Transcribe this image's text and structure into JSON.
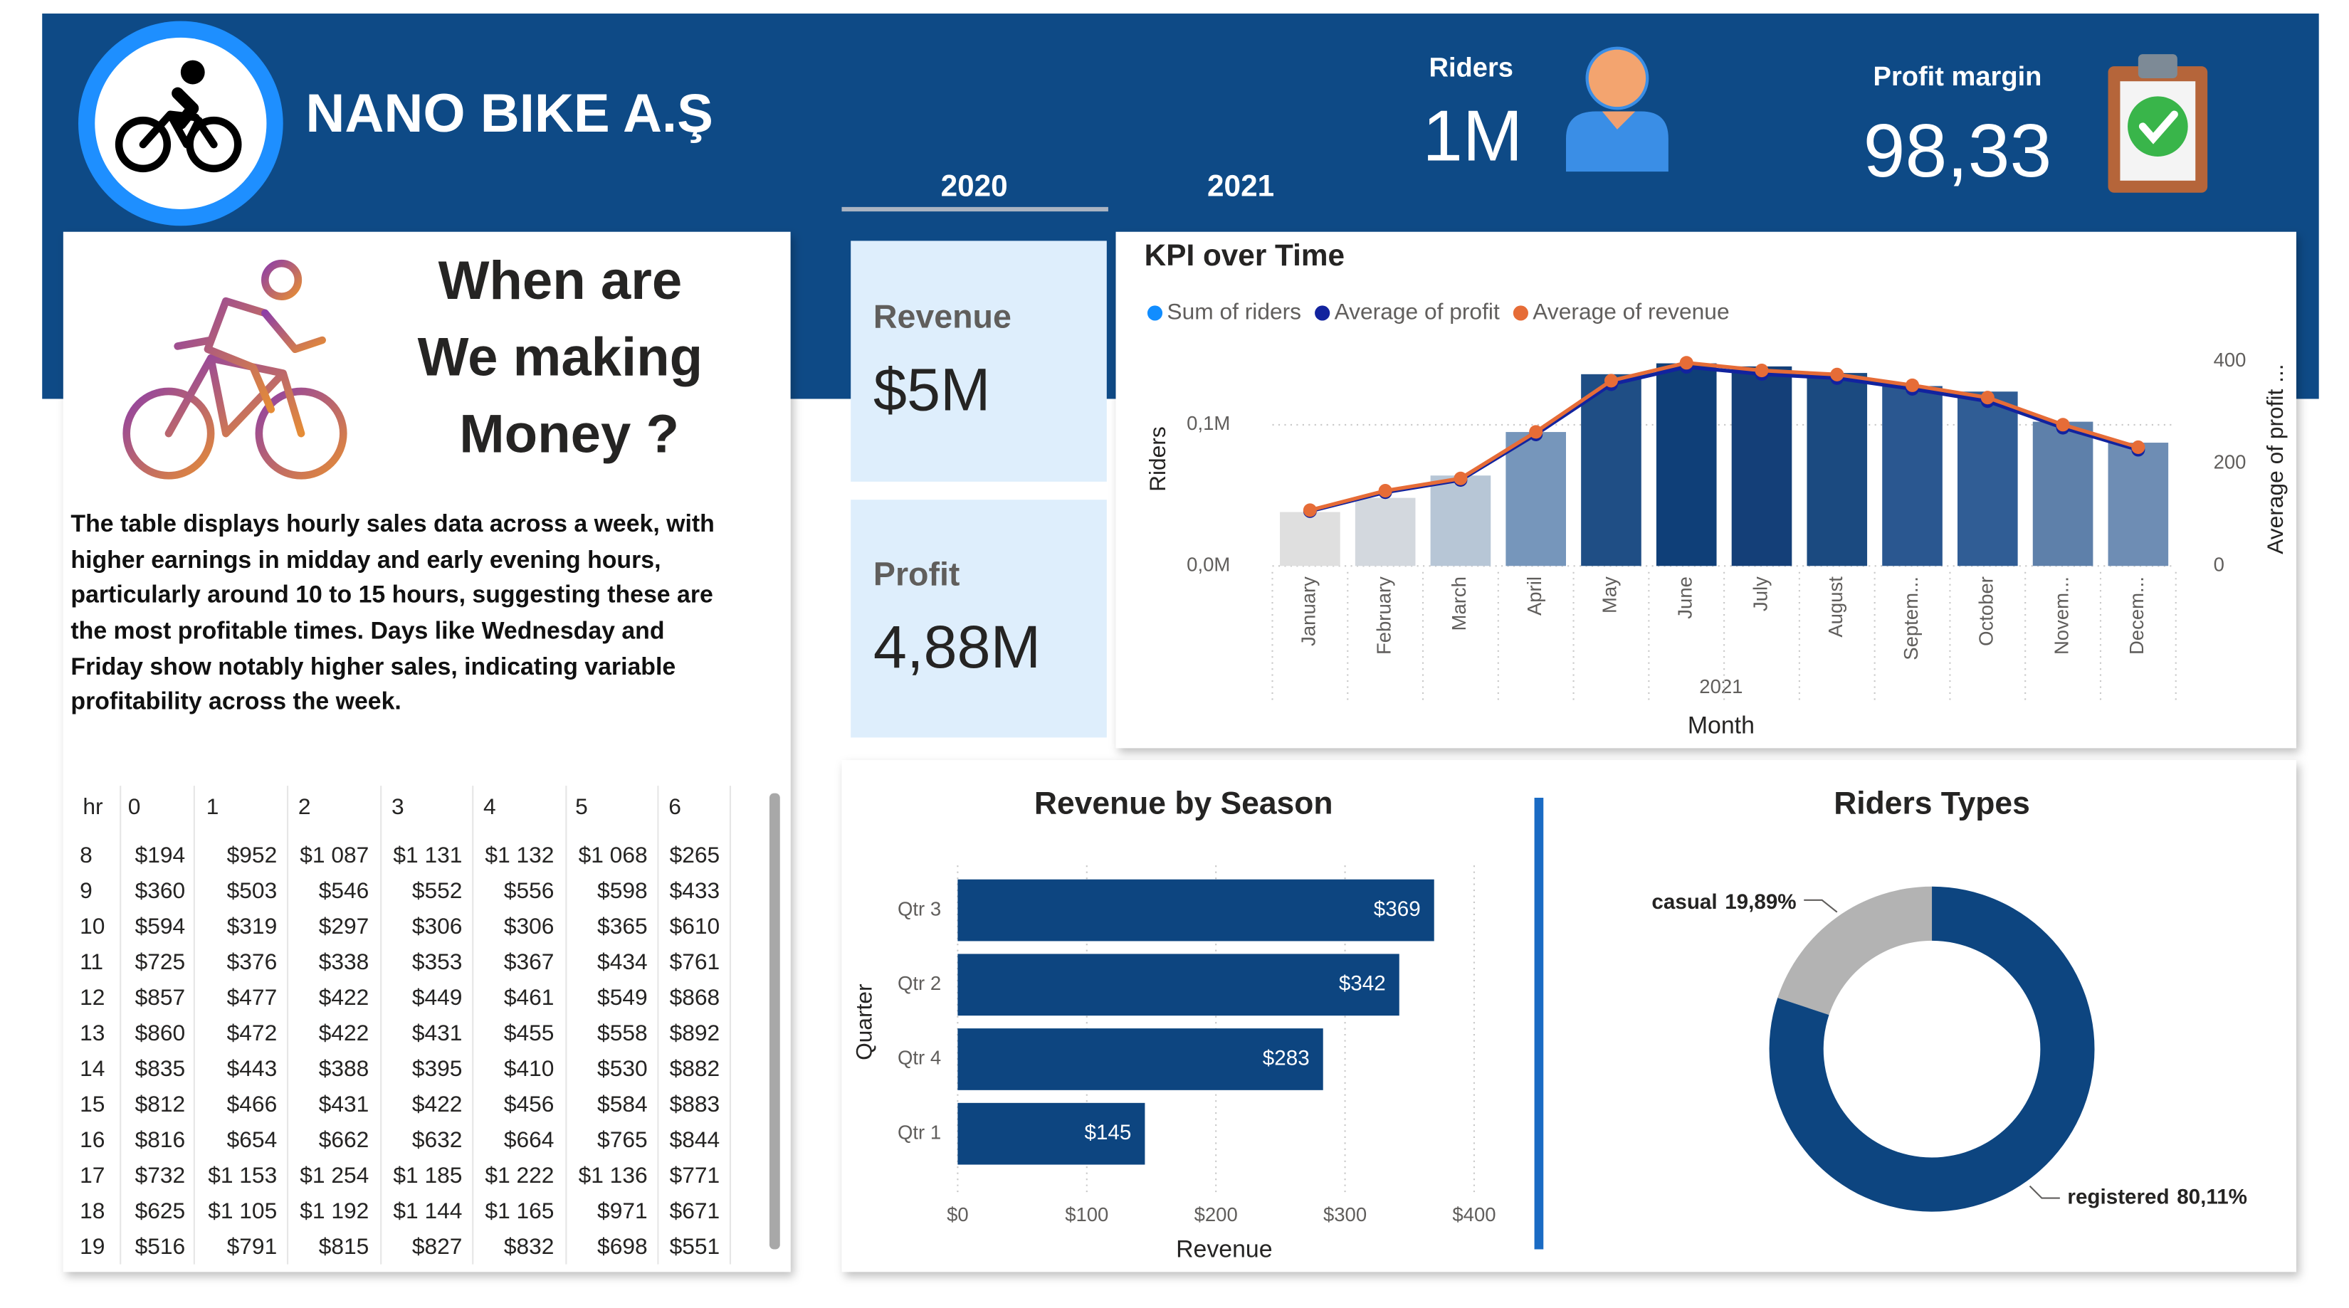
{
  "header": {
    "title": "NANO BIKE A.Ş",
    "years": [
      "2020",
      "2021"
    ],
    "kpis": [
      {
        "label": "Riders",
        "value": "1M"
      },
      {
        "label": "Profit margin",
        "value": "98,33"
      }
    ]
  },
  "cards": [
    {
      "label": "Revenue",
      "value": "$5M"
    },
    {
      "label": "Profit",
      "value": "4,88M"
    }
  ],
  "insight": {
    "title_lines": [
      "When are",
      "We making",
      "Money ?"
    ],
    "text_lines": [
      "The table displays hourly sales data across a week, with",
      "higher earnings in midday and early evening hours,",
      "particularly around 10 to 15 hours, suggesting these are",
      "the most profitable times. Days like Wednesday and",
      "Friday show notably higher sales, indicating variable",
      "profitability across the week."
    ]
  },
  "table": {
    "columns": [
      "hr",
      "0",
      "1",
      "2",
      "3",
      "4",
      "5",
      "6"
    ],
    "rows": [
      [
        "8",
        "$194",
        "$952",
        "$1 087",
        "$1 131",
        "$1 132",
        "$1 068",
        "$265"
      ],
      [
        "9",
        "$360",
        "$503",
        "$546",
        "$552",
        "$556",
        "$598",
        "$433"
      ],
      [
        "10",
        "$594",
        "$319",
        "$297",
        "$306",
        "$306",
        "$365",
        "$610"
      ],
      [
        "11",
        "$725",
        "$376",
        "$338",
        "$353",
        "$367",
        "$434",
        "$761"
      ],
      [
        "12",
        "$857",
        "$477",
        "$422",
        "$449",
        "$461",
        "$549",
        "$868"
      ],
      [
        "13",
        "$860",
        "$472",
        "$422",
        "$431",
        "$455",
        "$558",
        "$892"
      ],
      [
        "14",
        "$835",
        "$443",
        "$388",
        "$395",
        "$410",
        "$530",
        "$882"
      ],
      [
        "15",
        "$812",
        "$466",
        "$431",
        "$422",
        "$456",
        "$584",
        "$883"
      ],
      [
        "16",
        "$816",
        "$654",
        "$662",
        "$632",
        "$664",
        "$765",
        "$844"
      ],
      [
        "17",
        "$732",
        "$1 153",
        "$1 254",
        "$1 185",
        "$1 222",
        "$1 136",
        "$771"
      ],
      [
        "18",
        "$625",
        "$1 105",
        "$1 192",
        "$1 144",
        "$1 165",
        "$971",
        "$671"
      ],
      [
        "19",
        "$516",
        "$791",
        "$815",
        "$827",
        "$832",
        "$698",
        "$551"
      ]
    ]
  },
  "chart_data": [
    {
      "type": "combo",
      "title": "KPI over Time",
      "x_label": "Month",
      "x_group_label": "2021",
      "y_label": "Riders",
      "y2_label": "Average of profit ...",
      "categories": [
        "January",
        "February",
        "March",
        "April",
        "May",
        "June",
        "July",
        "August",
        "Septem...",
        "October",
        "Novem...",
        "Decem..."
      ],
      "series": [
        {
          "name": "Sum of riders",
          "type": "bar",
          "color": "#118DFF",
          "bar_colors": [
            "#dfdfdf",
            "#d3d8de",
            "#b7c6d6",
            "#7696bb",
            "#1f4e85",
            "#0f3f78",
            "#143f78",
            "#1b4a80",
            "#2a5790",
            "#305d95",
            "#5e80aa",
            "#6e8db4"
          ],
          "values": [
            38189,
            48215,
            64045,
            94870,
            135821,
            143512,
            141341,
            136691,
            127418,
            123511,
            102167,
            87323
          ]
        },
        {
          "name": "Average of profit",
          "type": "line",
          "axis": "y2",
          "color": "#12239E",
          "values": [
            107,
            144,
            168,
            257,
            355,
            389,
            375,
            367,
            346,
            322,
            270,
            227
          ]
        },
        {
          "name": "Average of revenue",
          "type": "line",
          "axis": "y2",
          "color": "#E66C37",
          "values": [
            109,
            147,
            171,
            262,
            362,
            397,
            382,
            374,
            353,
            329,
            276,
            232
          ]
        }
      ],
      "ylim": [
        0,
        145000
      ],
      "yticks": [
        {
          "value": 0,
          "label": "0,0M"
        },
        {
          "value": 100000,
          "label": "0,1M"
        }
      ],
      "y2lim": [
        0,
        400
      ],
      "y2ticks": [
        0,
        200,
        400
      ],
      "grid": true
    },
    {
      "type": "hbar",
      "title": "Revenue by Season",
      "x_label": "Revenue",
      "y_label": "Quarter",
      "categories": [
        "Qtr 3",
        "Qtr 2",
        "Qtr 4",
        "Qtr 1"
      ],
      "values": [
        369,
        342,
        283,
        145
      ],
      "value_labels": [
        "$369",
        "$342",
        "$283",
        "$145"
      ],
      "color": "#0d4580",
      "xlim": [
        0,
        400
      ],
      "xticks": [
        {
          "value": 0,
          "label": "$0"
        },
        {
          "value": 100,
          "label": "$100"
        },
        {
          "value": 200,
          "label": "$200"
        },
        {
          "value": 300,
          "label": "$300"
        },
        {
          "value": 400,
          "label": "$400"
        }
      ],
      "grid": true
    },
    {
      "type": "donut",
      "title": "Riders Types",
      "categories": [
        "casual",
        "registered"
      ],
      "values": [
        19.89,
        80.11
      ],
      "value_labels": [
        "19,89%",
        "80,11%"
      ],
      "colors": [
        "#b3b3b3",
        "#0d4580"
      ]
    }
  ]
}
